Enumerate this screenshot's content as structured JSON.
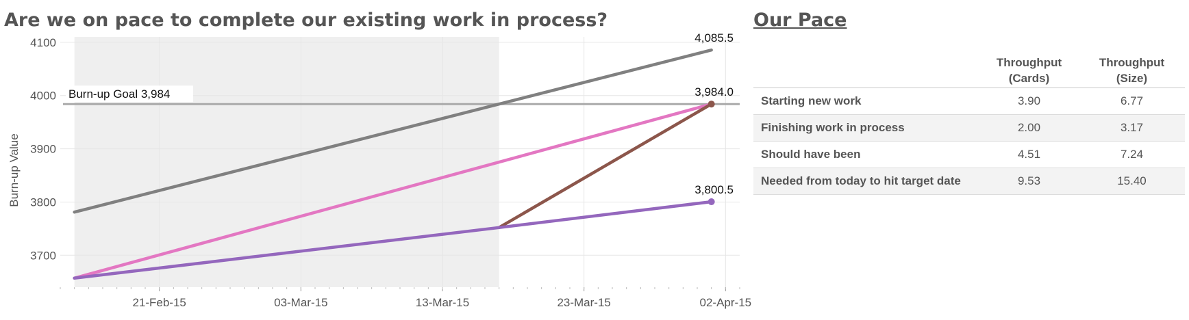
{
  "chart_data": {
    "type": "line",
    "title": "Are we on pace to complete our existing work in process?",
    "xlabel": "",
    "ylabel": "Burn-up Value",
    "x_ticks": [
      "21-Feb-15",
      "03-Mar-15",
      "13-Mar-15",
      "23-Mar-15",
      "02-Apr-15"
    ],
    "xlim": [
      "2015-02-14",
      "2015-04-03"
    ],
    "ylim": [
      3640,
      4105
    ],
    "y_ticks": [
      3700,
      3800,
      3900,
      4000,
      4100
    ],
    "grid": true,
    "shaded_period": [
      "2015-02-15",
      "2015-03-17"
    ],
    "goal": {
      "label": "Burn-up Goal 3,984",
      "value": 3984
    },
    "series": [
      {
        "color": "#808080",
        "points": [
          {
            "x": "2015-02-15",
            "y": 3781
          },
          {
            "x": "2015-04-01",
            "y": 4085.5
          }
        ],
        "end_label": "4,085.5",
        "marker": false
      },
      {
        "color": "#e377c2",
        "points": [
          {
            "x": "2015-02-15",
            "y": 3657
          },
          {
            "x": "2015-04-01",
            "y": 3984.0
          }
        ],
        "end_label": "",
        "marker": false
      },
      {
        "color": "#8c564b",
        "points": [
          {
            "x": "2015-03-17",
            "y": 3752
          },
          {
            "x": "2015-04-01",
            "y": 3984.0
          }
        ],
        "end_label": "3,984.0",
        "marker": true
      },
      {
        "color": "#9467bd",
        "points": [
          {
            "x": "2015-02-15",
            "y": 3657
          },
          {
            "x": "2015-03-17",
            "y": 3752
          },
          {
            "x": "2015-04-01",
            "y": 3800.5
          }
        ],
        "end_label": "3,800.5",
        "marker": true
      }
    ]
  },
  "pace": {
    "title": "Our Pace",
    "columns": [
      "",
      "Throughput (Cards)",
      "Throughput (Size)"
    ],
    "rows": [
      {
        "label": "Starting new work",
        "cards": "3.90",
        "size": "6.77"
      },
      {
        "label": "Finishing work in process",
        "cards": "2.00",
        "size": "3.17"
      },
      {
        "label": "Should have been",
        "cards": "4.51",
        "size": "7.24"
      },
      {
        "label": "Needed from today to hit target date",
        "cards": "9.53",
        "size": "15.40"
      }
    ]
  }
}
